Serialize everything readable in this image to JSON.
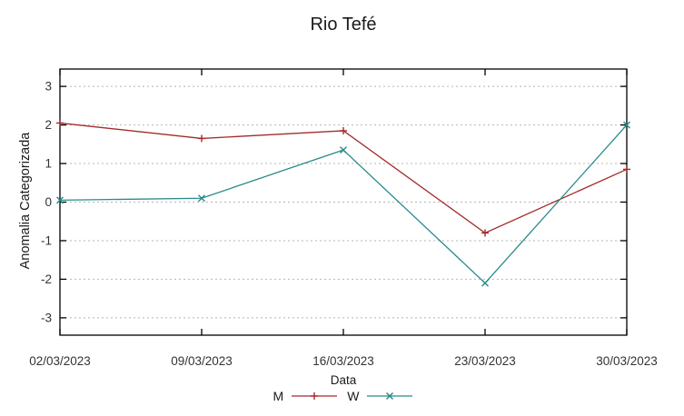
{
  "chart": {
    "title": "Rio Tefé",
    "xlabel": "Data",
    "ylabel": "Anomalia Categorizada"
  },
  "chart_data": {
    "type": "line",
    "title": "Rio Tefé",
    "xlabel": "Data",
    "ylabel": "Anomalia Categorizada",
    "categories": [
      "02/03/2023",
      "09/03/2023",
      "16/03/2023",
      "23/03/2023",
      "30/03/2023"
    ],
    "series": [
      {
        "name": "M",
        "marker": "plus",
        "color": "#a42a2a",
        "values": [
          2.05,
          1.65,
          1.85,
          -0.8,
          0.85
        ]
      },
      {
        "name": "W",
        "marker": "x",
        "color": "#2a8a8a",
        "values": [
          0.05,
          0.1,
          1.35,
          -2.1,
          2.0
        ]
      }
    ],
    "ylim": [
      -3.45,
      3.45
    ],
    "y_ticks": [
      -3,
      -2,
      -1,
      0,
      1,
      2,
      3
    ],
    "grid": "horizontal-dashed",
    "legend_position": "bottom-center",
    "colors": {
      "grid": "#b5b5b5",
      "border": "#000000",
      "tick_text": "#333333"
    }
  }
}
